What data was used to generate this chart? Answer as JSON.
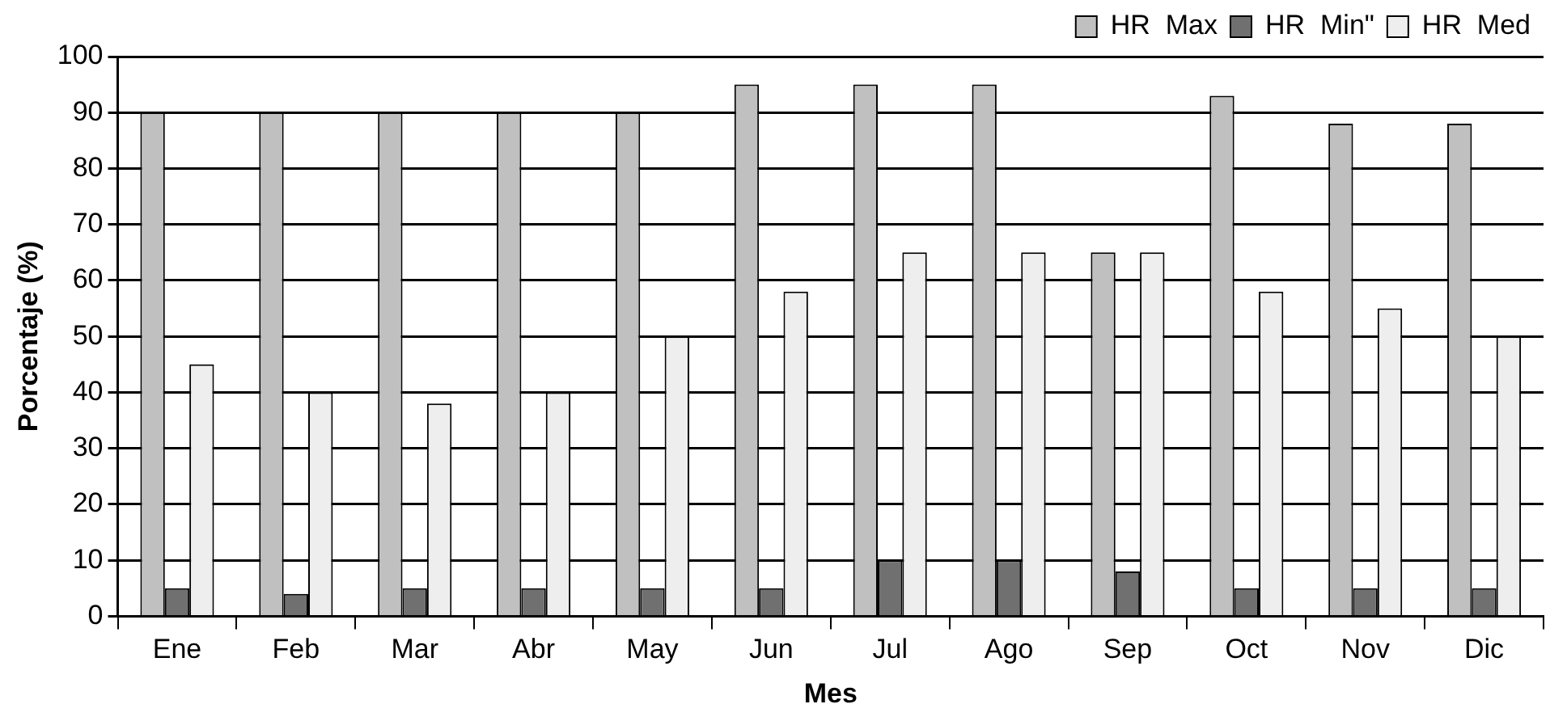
{
  "chart_data": {
    "type": "bar",
    "xlabel": "Mes",
    "ylabel": "Porcentaje (%)",
    "categories": [
      "Ene",
      "Feb",
      "Mar",
      "Abr",
      "May",
      "Jun",
      "Jul",
      "Ago",
      "Sep",
      "Oct",
      "Nov",
      "Dic"
    ],
    "series": [
      {
        "name": "HR  Max",
        "color": "#c0c0c0",
        "values": [
          90,
          90,
          90,
          90,
          90,
          95,
          95,
          95,
          65,
          93,
          88,
          88
        ]
      },
      {
        "name": "HR  Min\"",
        "color": "#707070",
        "values": [
          5,
          4,
          5,
          5,
          5,
          5,
          10,
          10,
          8,
          5,
          5,
          5
        ]
      },
      {
        "name": "HR  Med",
        "color": "#eeeeee",
        "values": [
          45,
          40,
          38,
          40,
          50,
          58,
          65,
          65,
          65,
          58,
          55,
          50
        ]
      }
    ],
    "ylim": [
      0,
      100
    ],
    "yticks": [
      0,
      10,
      20,
      30,
      40,
      50,
      60,
      70,
      80,
      90,
      100
    ],
    "grid": "y",
    "legend": "top right"
  }
}
